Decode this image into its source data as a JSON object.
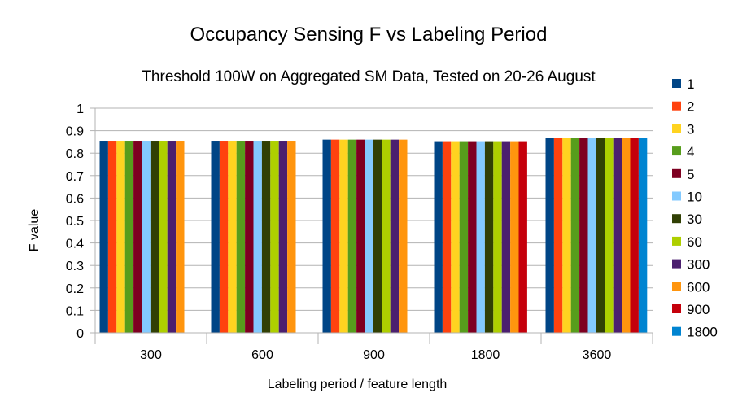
{
  "chart_data": {
    "type": "bar",
    "title": "Occupancy Sensing F vs Labeling Period",
    "subtitle": "Threshold 100W on Aggregated SM Data, Tested on 20-26 August",
    "xlabel": "Labeling period / feature length",
    "ylabel": "F value",
    "ylim": [
      0,
      1
    ],
    "yticks": [
      "0",
      "0.1",
      "0.2",
      "0.3",
      "0.4",
      "0.5",
      "0.6",
      "0.7",
      "0.8",
      "0.9",
      "1"
    ],
    "grid": true,
    "legend_position": "right",
    "categories": [
      "300",
      "600",
      "900",
      "1800",
      "3600"
    ],
    "series": [
      {
        "name": "1",
        "color": "#004586",
        "values": [
          0.855,
          0.855,
          0.86,
          0.853,
          0.868
        ]
      },
      {
        "name": "2",
        "color": "#ff420e",
        "values": [
          0.855,
          0.855,
          0.86,
          0.853,
          0.868
        ]
      },
      {
        "name": "3",
        "color": "#ffd320",
        "values": [
          0.855,
          0.855,
          0.86,
          0.853,
          0.868
        ]
      },
      {
        "name": "4",
        "color": "#579d1c",
        "values": [
          0.855,
          0.855,
          0.86,
          0.853,
          0.868
        ]
      },
      {
        "name": "5",
        "color": "#7e0021",
        "values": [
          0.855,
          0.855,
          0.86,
          0.853,
          0.868
        ]
      },
      {
        "name": "10",
        "color": "#83caff",
        "values": [
          0.855,
          0.855,
          0.86,
          0.853,
          0.868
        ]
      },
      {
        "name": "30",
        "color": "#314004",
        "values": [
          0.855,
          0.855,
          0.86,
          0.853,
          0.868
        ]
      },
      {
        "name": "60",
        "color": "#aecf00",
        "values": [
          0.855,
          0.855,
          0.86,
          0.853,
          0.868
        ]
      },
      {
        "name": "300",
        "color": "#4b1f6f",
        "values": [
          0.855,
          0.855,
          0.86,
          0.853,
          0.868
        ]
      },
      {
        "name": "600",
        "color": "#ff950e",
        "values": [
          0.855,
          0.855,
          0.86,
          0.853,
          0.868
        ]
      },
      {
        "name": "900",
        "color": "#c5000b",
        "values": [
          null,
          null,
          null,
          0.853,
          0.868
        ]
      },
      {
        "name": "1800",
        "color": "#0084d1",
        "values": [
          null,
          null,
          null,
          null,
          0.868
        ]
      }
    ]
  }
}
